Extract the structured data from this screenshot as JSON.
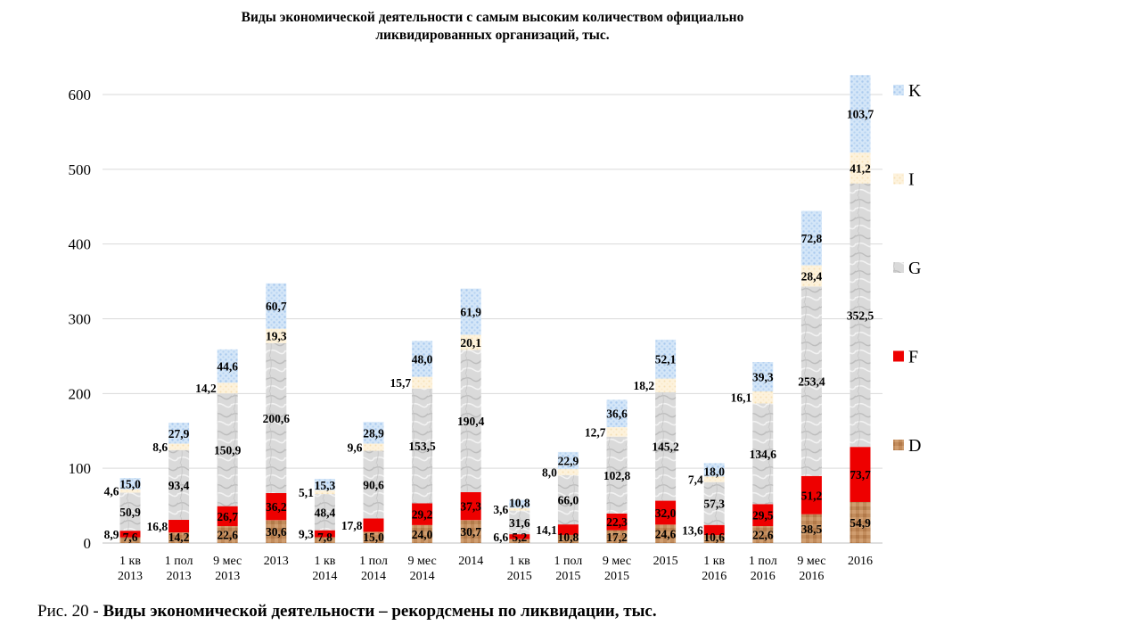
{
  "title_line1": "Виды экономической деятельности с самым высоким количеством официально",
  "title_line2": "ликвидированных организаций, тыс.",
  "caption_prefix": "Рис. 20 - ",
  "caption_bold": "Виды экономической деятельности – рекордсмены по ликвидации, тыс.",
  "chart_data": {
    "type": "bar",
    "stacked": true,
    "categories": [
      [
        "1 кв",
        "2013"
      ],
      [
        "1 пол",
        "2013"
      ],
      [
        "9 мес",
        "2013"
      ],
      [
        "2013"
      ],
      [
        "1 кв",
        "2014"
      ],
      [
        "1 пол",
        "2014"
      ],
      [
        "9 мес",
        "2014"
      ],
      [
        "2014"
      ],
      [
        "1 кв",
        "2015"
      ],
      [
        "1 пол",
        "2015"
      ],
      [
        "9 мес",
        "2015"
      ],
      [
        "2015"
      ],
      [
        "1 кв",
        "2016"
      ],
      [
        "1 пол",
        "2016"
      ],
      [
        "9 мес",
        "2016"
      ],
      [
        "2016"
      ]
    ],
    "series": [
      {
        "name": "D",
        "color": "#c08a5a",
        "values": [
          7.6,
          14.2,
          22.6,
          30.6,
          7.8,
          15.0,
          24.0,
          30.7,
          5.2,
          10.8,
          17.2,
          24.6,
          10.6,
          22.6,
          38.5,
          54.9
        ],
        "labels": [
          "7,6",
          "14,2",
          "22,6",
          "30,6",
          "7,8",
          "15,0",
          "24,0",
          "30,7",
          "5,2",
          "10,8",
          "17,2",
          "24,6",
          "10,6",
          "22,6",
          "38,5",
          "54,9"
        ]
      },
      {
        "name": "F",
        "color": "#ee0000",
        "values": [
          8.9,
          16.8,
          26.7,
          36.2,
          9.3,
          17.8,
          29.2,
          37.3,
          6.6,
          14.1,
          22.3,
          32.0,
          13.6,
          29.5,
          51.2,
          73.7
        ],
        "labels": [
          "8,9",
          "16,8",
          "26,7",
          "36,2",
          "9,3",
          "17,8",
          "29,2",
          "37,3",
          "6,6",
          "14,1",
          "22,3",
          "32,0",
          "13,6",
          "29,5",
          "51,2",
          "73,7"
        ]
      },
      {
        "name": "G",
        "color": "#d2d2d2",
        "values": [
          50.9,
          93.4,
          150.9,
          200.6,
          48.4,
          90.6,
          153.5,
          190.4,
          31.6,
          66.0,
          102.8,
          145.2,
          57.3,
          134.6,
          253.4,
          352.5
        ],
        "labels": [
          "50,9",
          "93,4",
          "150,9",
          "200,6",
          "48,4",
          "90,6",
          "153,5",
          "190,4",
          "31,6",
          "66,0",
          "102,8",
          "145,2",
          "57,3",
          "134,6",
          "253,4",
          "352,5"
        ]
      },
      {
        "name": "I",
        "color": "#fcefd4",
        "values": [
          4.6,
          8.6,
          14.2,
          19.3,
          5.1,
          9.6,
          15.7,
          20.1,
          3.6,
          8.0,
          12.7,
          18.2,
          7.4,
          16.1,
          28.4,
          41.2
        ],
        "labels": [
          "4,6",
          "8,6",
          "14,2",
          "19,3",
          "5,1",
          "9,6",
          "15,7",
          "20,1",
          "3,6",
          "8,0",
          "12,7",
          "18,2",
          "7,4",
          "16,1",
          "28,4",
          "41,2"
        ]
      },
      {
        "name": "K",
        "color": "#c7def5",
        "values": [
          15.0,
          27.9,
          44.6,
          60.7,
          15.3,
          28.9,
          48.0,
          61.9,
          10.8,
          22.9,
          36.6,
          52.1,
          18.0,
          39.3,
          72.8,
          103.7
        ],
        "labels": [
          "15,0",
          "27,9",
          "44,6",
          "60,7",
          "15,3",
          "28,9",
          "48,0",
          "61,9",
          "10,8",
          "22,9",
          "36,6",
          "52,1",
          "18,0",
          "39,3",
          "72,8",
          "103,7"
        ]
      }
    ],
    "yticks": [
      0,
      100,
      200,
      300,
      400,
      500,
      600
    ],
    "ylim": [
      0,
      600
    ],
    "grid": true,
    "legend": "right"
  }
}
